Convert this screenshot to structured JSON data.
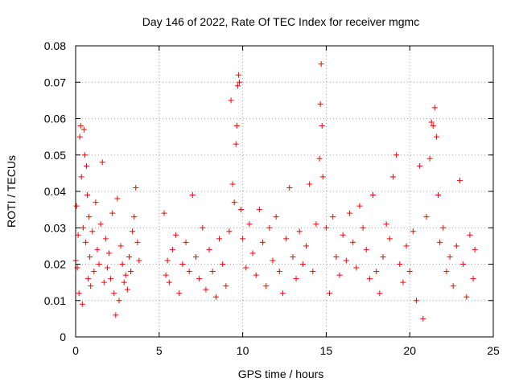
{
  "chart_data": {
    "type": "scatter",
    "title": "Day 146 of 2022, Rate Of TEC Index for receiver mgmc",
    "xlabel": "GPS time / hours",
    "ylabel": "ROTI / TECUs",
    "xlim": [
      0,
      25
    ],
    "ylim": [
      0,
      0.08
    ],
    "xticks": [
      0,
      5,
      10,
      15,
      20,
      25
    ],
    "xtick_labels": [
      "0",
      "5",
      "10",
      "15",
      "20",
      "25"
    ],
    "yticks": [
      0,
      0.01,
      0.02,
      0.03,
      0.04,
      0.05,
      0.06,
      0.07,
      0.08
    ],
    "ytick_labels": [
      "0",
      "0.01",
      "0.02",
      "0.03",
      "0.04",
      "0.05",
      "0.06",
      "0.07",
      "0.08"
    ],
    "grid": true,
    "marker": "+",
    "marker_color": "#ff0000",
    "series": [
      {
        "name": "ROTI",
        "points": [
          [
            0.0,
            0.021
          ],
          [
            0.05,
            0.036
          ],
          [
            0.1,
            0.019
          ],
          [
            0.15,
            0.028
          ],
          [
            0.2,
            0.012
          ],
          [
            0.25,
            0.055
          ],
          [
            0.3,
            0.058
          ],
          [
            0.35,
            0.044
          ],
          [
            0.4,
            0.009
          ],
          [
            0.45,
            0.03
          ],
          [
            0.5,
            0.057
          ],
          [
            0.55,
            0.05
          ],
          [
            0.6,
            0.026
          ],
          [
            0.65,
            0.047
          ],
          [
            0.7,
            0.039
          ],
          [
            0.75,
            0.016
          ],
          [
            0.8,
            0.033
          ],
          [
            0.85,
            0.022
          ],
          [
            0.9,
            0.014
          ],
          [
            1.0,
            0.029
          ],
          [
            1.1,
            0.018
          ],
          [
            1.2,
            0.037
          ],
          [
            1.3,
            0.024
          ],
          [
            1.4,
            0.02
          ],
          [
            1.5,
            0.031
          ],
          [
            1.6,
            0.048
          ],
          [
            1.7,
            0.015
          ],
          [
            1.8,
            0.027
          ],
          [
            1.9,
            0.019
          ],
          [
            2.0,
            0.023
          ],
          [
            2.1,
            0.016
          ],
          [
            2.2,
            0.034
          ],
          [
            2.3,
            0.012
          ],
          [
            2.4,
            0.006
          ],
          [
            2.5,
            0.038
          ],
          [
            2.6,
            0.01
          ],
          [
            2.7,
            0.025
          ],
          [
            2.8,
            0.02
          ],
          [
            2.9,
            0.015
          ],
          [
            3.0,
            0.017
          ],
          [
            3.1,
            0.013
          ],
          [
            3.2,
            0.022
          ],
          [
            3.3,
            0.018
          ],
          [
            3.4,
            0.029
          ],
          [
            3.5,
            0.033
          ],
          [
            3.6,
            0.041
          ],
          [
            3.7,
            0.026
          ],
          [
            3.8,
            0.021
          ],
          [
            5.3,
            0.034
          ],
          [
            5.4,
            0.017
          ],
          [
            5.5,
            0.021
          ],
          [
            5.6,
            0.015
          ],
          [
            5.8,
            0.024
          ],
          [
            6.0,
            0.028
          ],
          [
            6.2,
            0.012
          ],
          [
            6.4,
            0.02
          ],
          [
            6.6,
            0.026
          ],
          [
            6.8,
            0.018
          ],
          [
            7.0,
            0.039
          ],
          [
            7.2,
            0.022
          ],
          [
            7.4,
            0.016
          ],
          [
            7.6,
            0.03
          ],
          [
            7.8,
            0.013
          ],
          [
            8.0,
            0.024
          ],
          [
            8.2,
            0.018
          ],
          [
            8.4,
            0.011
          ],
          [
            8.6,
            0.027
          ],
          [
            8.8,
            0.02
          ],
          [
            9.0,
            0.014
          ],
          [
            9.2,
            0.029
          ],
          [
            9.3,
            0.065
          ],
          [
            9.4,
            0.042
          ],
          [
            9.5,
            0.037
          ],
          [
            9.6,
            0.053
          ],
          [
            9.65,
            0.058
          ],
          [
            9.7,
            0.069
          ],
          [
            9.75,
            0.072
          ],
          [
            9.8,
            0.07
          ],
          [
            9.9,
            0.035
          ],
          [
            10.0,
            0.027
          ],
          [
            10.2,
            0.019
          ],
          [
            10.4,
            0.031
          ],
          [
            10.6,
            0.023
          ],
          [
            10.8,
            0.017
          ],
          [
            11.0,
            0.035
          ],
          [
            11.2,
            0.026
          ],
          [
            11.4,
            0.014
          ],
          [
            11.6,
            0.03
          ],
          [
            11.8,
            0.021
          ],
          [
            12.0,
            0.033
          ],
          [
            12.2,
            0.018
          ],
          [
            12.4,
            0.012
          ],
          [
            12.6,
            0.027
          ],
          [
            12.8,
            0.041
          ],
          [
            13.0,
            0.022
          ],
          [
            13.2,
            0.016
          ],
          [
            13.4,
            0.029
          ],
          [
            13.6,
            0.02
          ],
          [
            13.8,
            0.025
          ],
          [
            14.0,
            0.042
          ],
          [
            14.2,
            0.018
          ],
          [
            14.4,
            0.031
          ],
          [
            14.6,
            0.049
          ],
          [
            14.65,
            0.064
          ],
          [
            14.7,
            0.075
          ],
          [
            14.75,
            0.058
          ],
          [
            14.8,
            0.044
          ],
          [
            15.0,
            0.03
          ],
          [
            15.2,
            0.012
          ],
          [
            15.4,
            0.033
          ],
          [
            15.6,
            0.022
          ],
          [
            15.8,
            0.017
          ],
          [
            16.0,
            0.028
          ],
          [
            16.2,
            0.021
          ],
          [
            16.4,
            0.034
          ],
          [
            16.6,
            0.026
          ],
          [
            16.8,
            0.019
          ],
          [
            17.0,
            0.036
          ],
          [
            17.2,
            0.03
          ],
          [
            17.4,
            0.024
          ],
          [
            17.6,
            0.016
          ],
          [
            17.8,
            0.039
          ],
          [
            18.0,
            0.018
          ],
          [
            18.2,
            0.012
          ],
          [
            18.4,
            0.022
          ],
          [
            18.6,
            0.031
          ],
          [
            18.8,
            0.027
          ],
          [
            19.0,
            0.044
          ],
          [
            19.2,
            0.05
          ],
          [
            19.4,
            0.02
          ],
          [
            19.6,
            0.015
          ],
          [
            19.8,
            0.025
          ],
          [
            20.0,
            0.018
          ],
          [
            20.2,
            0.029
          ],
          [
            20.4,
            0.01
          ],
          [
            20.6,
            0.047
          ],
          [
            20.8,
            0.005
          ],
          [
            21.0,
            0.033
          ],
          [
            21.2,
            0.049
          ],
          [
            21.3,
            0.059
          ],
          [
            21.4,
            0.058
          ],
          [
            21.5,
            0.063
          ],
          [
            21.6,
            0.055
          ],
          [
            21.7,
            0.039
          ],
          [
            21.8,
            0.026
          ],
          [
            22.0,
            0.03
          ],
          [
            22.2,
            0.018
          ],
          [
            22.4,
            0.022
          ],
          [
            22.6,
            0.014
          ],
          [
            22.8,
            0.025
          ],
          [
            23.0,
            0.043
          ],
          [
            23.2,
            0.02
          ],
          [
            23.4,
            0.011
          ],
          [
            23.6,
            0.028
          ],
          [
            23.8,
            0.016
          ],
          [
            23.9,
            0.024
          ]
        ]
      }
    ]
  }
}
